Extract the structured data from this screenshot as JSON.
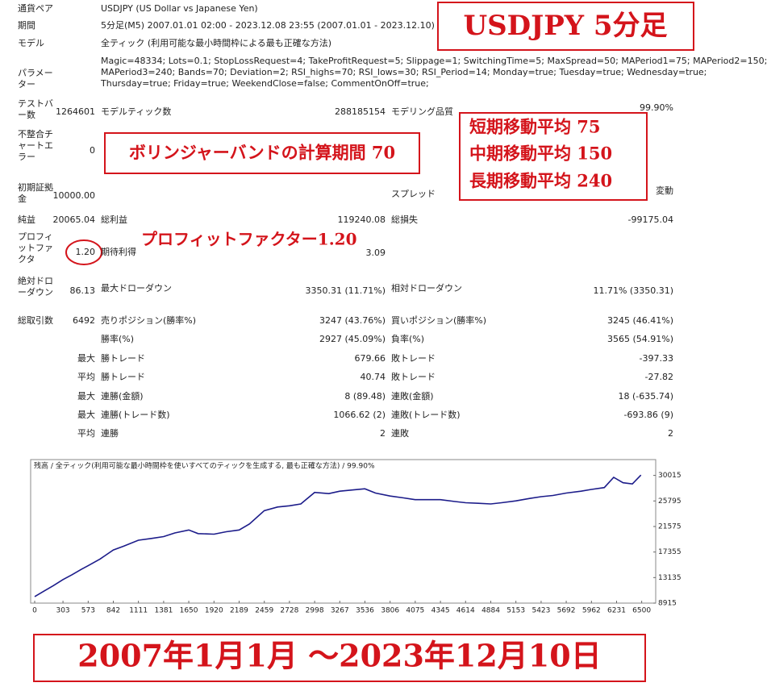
{
  "report": {
    "rows": [
      [
        "通貨ペア",
        "USDJPY (US Dollar vs Japanese Yen)"
      ],
      [
        "期間",
        "5分足(M5) 2007.01.01 02:00 - 2023.12.08 23:55 (2007.01.01 - 2023.12.10)"
      ],
      [
        "モデル",
        "全ティック (利用可能な最小時間枠による最も正確な方法)"
      ],
      [
        "パラメーター",
        "Magic=48334; Lots=0.1; StopLossRequest=4; TakeProfitRequest=5; Slippage=1; SwitchingTime=5; MaxSpread=50; MAPeriod1=75; MAPeriod2=150;",
        "MAPeriod3=240; Bands=70; Deviation=2; RSI_highs=70; RSI_lows=30; RSI_Period=14; Monday=true; Tuesday=true; Wednesday=true;",
        "Thursday=true; Friday=true; WeekendClose=false; CommentOnOff=true;"
      ],
      [
        "テストバー数",
        "1264601",
        "モデルティック数",
        "288185154",
        "モデリング品質",
        "99.90%"
      ],
      [
        "不整合チャートエラー",
        "0"
      ],
      [
        "初期証拠金",
        "10000.00",
        "スプレッド",
        "変動"
      ],
      [
        "純益",
        "20065.04",
        "総利益",
        "119240.08",
        "総損失",
        "-99175.04"
      ],
      [
        "プロフィットファクタ",
        "1.20",
        "期待利得",
        "3.09"
      ],
      [
        "絶対ドローダウン",
        "86.13",
        "最大ドローダウン",
        "3350.31 (11.71%)",
        "相対ドローダウン",
        "11.71% (3350.31)"
      ],
      [
        "総取引数",
        "6492",
        "売りポジション(勝率%)",
        "3247 (43.76%)",
        "買いポジション(勝率%)",
        "3245 (46.41%)"
      ],
      [
        "勝率(%)",
        "2927 (45.09%)",
        "負率(%)",
        "3565 (54.91%)"
      ],
      [
        "最大",
        "勝トレード",
        "679.66",
        "敗トレード",
        "-397.33"
      ],
      [
        "平均",
        "勝トレード",
        "40.74",
        "敗トレード",
        "-27.82"
      ],
      [
        "最大",
        "連勝(金額)",
        "8 (89.48)",
        "連敗(金額)",
        "18 (-635.74)"
      ],
      [
        "最大",
        "連勝(トレード数)",
        "1066.62 (2)",
        "連敗(トレード数)",
        "-693.86 (9)"
      ],
      [
        "平均",
        "連勝",
        "2",
        "連敗",
        "2"
      ]
    ]
  },
  "annotations": {
    "title_box": "USDJPY 5分足",
    "bollinger": "ボリンジャーバンドの計算期間 70",
    "ma": [
      "短期移動平均 75",
      "中期移動平均 150",
      "長期移動平均 240"
    ],
    "profit_factor": "プロフィットファクター1.20",
    "period": "2007年1月1月 ～2023年12月10日"
  },
  "chart_data": {
    "type": "line",
    "title": "残高 / 全ティック(利用可能な最小時間枠を使いすべてのティックを生成する, 最も正確な方法) / 99.90%",
    "x": [
      0,
      100,
      200,
      303,
      400,
      500,
      573,
      700,
      842,
      950,
      1111,
      1250,
      1381,
      1500,
      1650,
      1750,
      1920,
      2050,
      2189,
      2300,
      2459,
      2600,
      2728,
      2850,
      2998,
      3150,
      3267,
      3400,
      3536,
      3650,
      3806,
      3950,
      4075,
      4200,
      4345,
      4500,
      4614,
      4750,
      4884,
      5000,
      5153,
      5300,
      5423,
      5550,
      5692,
      5850,
      5962,
      6100,
      6200,
      6300,
      6400,
      6492
    ],
    "series": [
      {
        "name": "残高",
        "color": "#1c1c8a",
        "values": [
          10000,
          10900,
          11800,
          12800,
          13600,
          14500,
          15100,
          16200,
          17700,
          18300,
          19300,
          19600,
          19900,
          20500,
          21000,
          20400,
          20300,
          20700,
          21000,
          22000,
          24200,
          24800,
          25000,
          25300,
          27200,
          27000,
          27400,
          27600,
          27800,
          27100,
          26600,
          26300,
          26000,
          26000,
          26000,
          25700,
          25500,
          25400,
          25300,
          25500,
          25800,
          26200,
          26500,
          26700,
          27100,
          27400,
          27700,
          28000,
          29700,
          28800,
          28600,
          30065
        ]
      }
    ],
    "xlim": [
      0,
      6650
    ],
    "ylim": [
      8915,
      32360
    ],
    "xticks": [
      0,
      303,
      573,
      842,
      1111,
      1381,
      1650,
      1920,
      2189,
      2459,
      2728,
      2998,
      3267,
      3536,
      3806,
      4075,
      4345,
      4614,
      4884,
      5153,
      5423,
      5692,
      5962,
      6231,
      6500
    ],
    "yticks": [
      8915,
      13135,
      17355,
      21575,
      25795,
      30015
    ]
  }
}
